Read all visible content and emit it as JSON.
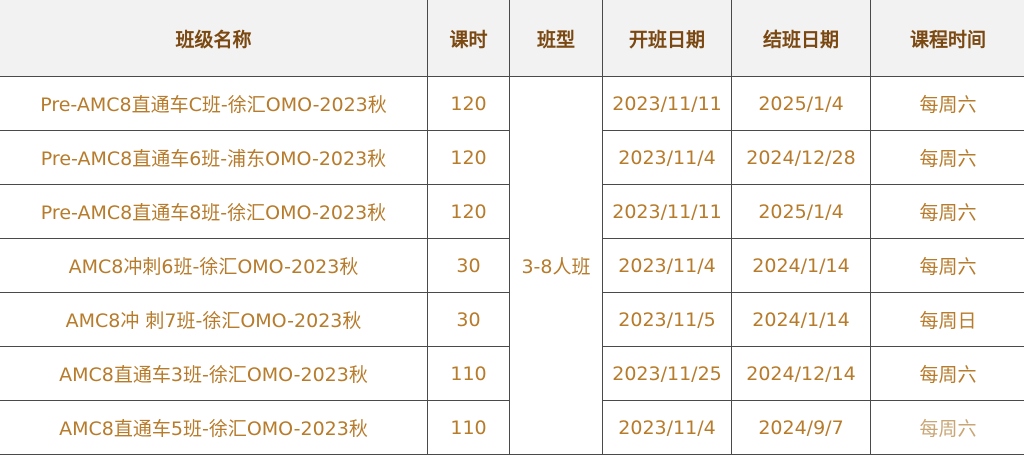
{
  "headers": [
    "班级名称",
    "课时",
    "班型",
    "开班日期",
    "结班日期",
    "课程时间"
  ],
  "class_type": "3-8人班",
  "rows": [
    {
      "name": "Pre-AMC8直通车C班-徐汇OMO-2023秋",
      "hours": "120",
      "start": "2023/11/11",
      "end": "2025/1/4",
      "schedule": "每周六"
    },
    {
      "name": "Pre-AMC8直通车6班-浦东OMO-2023秋",
      "hours": "120",
      "start": "2023/11/4",
      "end": "2024/12/28",
      "schedule": "每周六"
    },
    {
      "name": "Pre-AMC8直通车8班-徐汇OMO-2023秋",
      "hours": "120",
      "start": "2023/11/11",
      "end": "2025/1/4",
      "schedule": "每周六"
    },
    {
      "name": "AMC8冲刺6班-徐汇OMO-2023秋",
      "hours": "30",
      "start": "2023/11/4",
      "end": "2024/1/14",
      "schedule": "每周六"
    },
    {
      "name": "AMC8冲 刺7班-徐汇OMO-2023秋",
      "hours": "30",
      "start": "2023/11/5",
      "end": "2024/1/14",
      "schedule": "每周日"
    },
    {
      "name": "AMC8直通车3班-徐汇OMO-2023秋",
      "hours": "110",
      "start": "2023/11/25",
      "end": "2024/12/14",
      "schedule": "每周六"
    },
    {
      "name": "AMC8直通车5班-徐汇OMO-2023秋",
      "hours": "110",
      "start": "2023/11/4",
      "end": "2024/9/7",
      "schedule": "每周六"
    }
  ],
  "colors": {
    "header_bg": "#f2f2f2",
    "header_text": "#7a4810",
    "cell_text": "#b77b2c",
    "border": "#4a4a4a"
  }
}
